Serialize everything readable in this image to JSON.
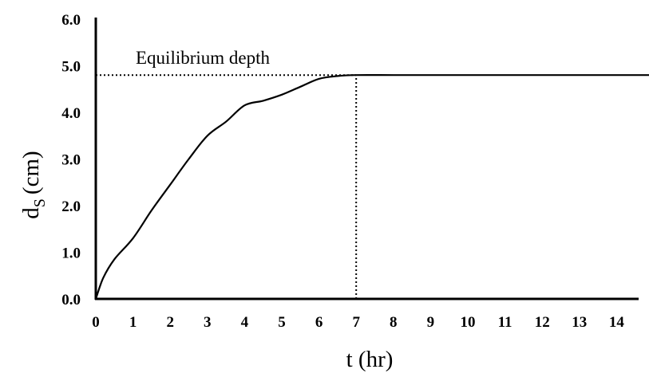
{
  "chart_data": {
    "type": "line",
    "title": "",
    "xlabel": "t (hr)",
    "ylabel_main": "d",
    "ylabel_sub": "S",
    "ylabel_unit": "(cm)",
    "xlim": [
      0,
      15
    ],
    "ylim": [
      0,
      6
    ],
    "xticks": [
      0,
      1,
      2,
      3,
      4,
      5,
      6,
      7,
      8,
      9,
      10,
      11,
      12,
      13,
      14
    ],
    "yticks": [
      "0.0",
      "1.0",
      "2.0",
      "3.0",
      "4.0",
      "5.0",
      "6.0"
    ],
    "grid": false,
    "legend": "none",
    "series": [
      {
        "x": [
          0,
          0.2,
          0.5,
          1.0,
          1.5,
          2.0,
          2.5,
          3.0,
          3.5,
          4.0,
          4.5,
          5.0,
          5.5,
          6.0,
          6.5,
          7.0,
          8.0,
          9.0,
          10.0,
          11.0,
          12.0,
          13.0,
          14.0,
          15.0
        ],
        "y": [
          0,
          0.45,
          0.85,
          1.3,
          1.9,
          2.45,
          3.0,
          3.5,
          3.8,
          4.15,
          4.25,
          4.38,
          4.55,
          4.72,
          4.78,
          4.8,
          4.8,
          4.8,
          4.8,
          4.8,
          4.8,
          4.8,
          4.8,
          4.8
        ],
        "color": "#000000"
      }
    ],
    "annotations": [
      {
        "type": "hline",
        "y": 4.8,
        "x_start": 0,
        "x_end": 7,
        "style": "dotted",
        "label": "Equilibrium depth"
      },
      {
        "type": "vline",
        "x": 7,
        "y_start": 0,
        "y_end": 4.8,
        "style": "dotted"
      }
    ]
  }
}
